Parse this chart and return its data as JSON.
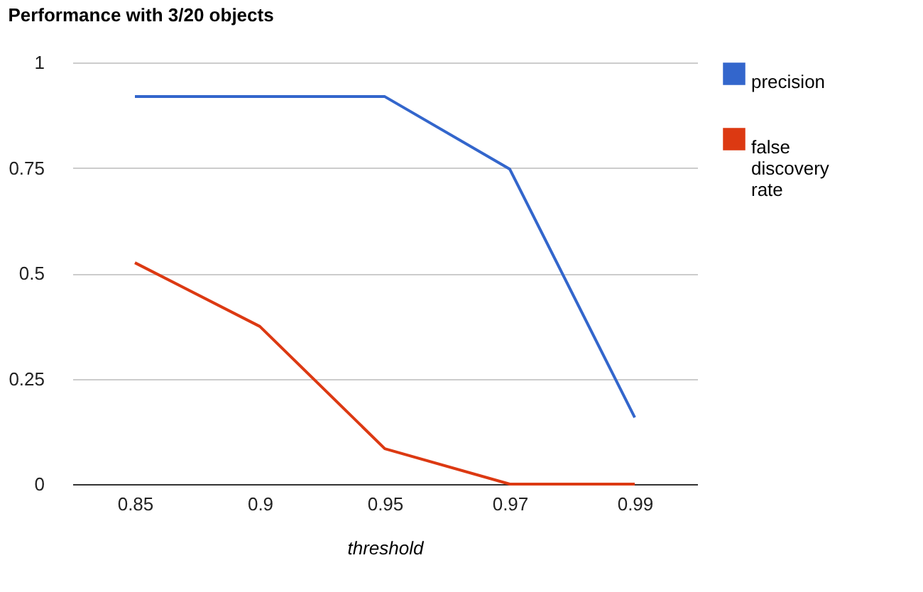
{
  "chart_data": {
    "type": "line",
    "title": "Performance with 3/20 objects",
    "xlabel": "threshold",
    "categories": [
      "0.85",
      "0.9",
      "0.95",
      "0.97",
      "0.99"
    ],
    "series": [
      {
        "name": "precision",
        "color": "#3366cc",
        "values": [
          0.919,
          0.919,
          0.919,
          0.747,
          0.158
        ]
      },
      {
        "name": "false discovery rate",
        "color": "#dc3912",
        "values": [
          0.525,
          0.374,
          0.084,
          0,
          0
        ]
      }
    ],
    "ylim": [
      0,
      1
    ],
    "yticks": [
      0,
      {
        "value": 0.25,
        "label": "0.25"
      },
      {
        "value": 0.5,
        "label": "0.5"
      },
      {
        "value": 0.75,
        "label": "0.75"
      },
      1
    ],
    "grid": "y",
    "legend": "top right",
    "marker": "none",
    "line_style": "solid"
  }
}
